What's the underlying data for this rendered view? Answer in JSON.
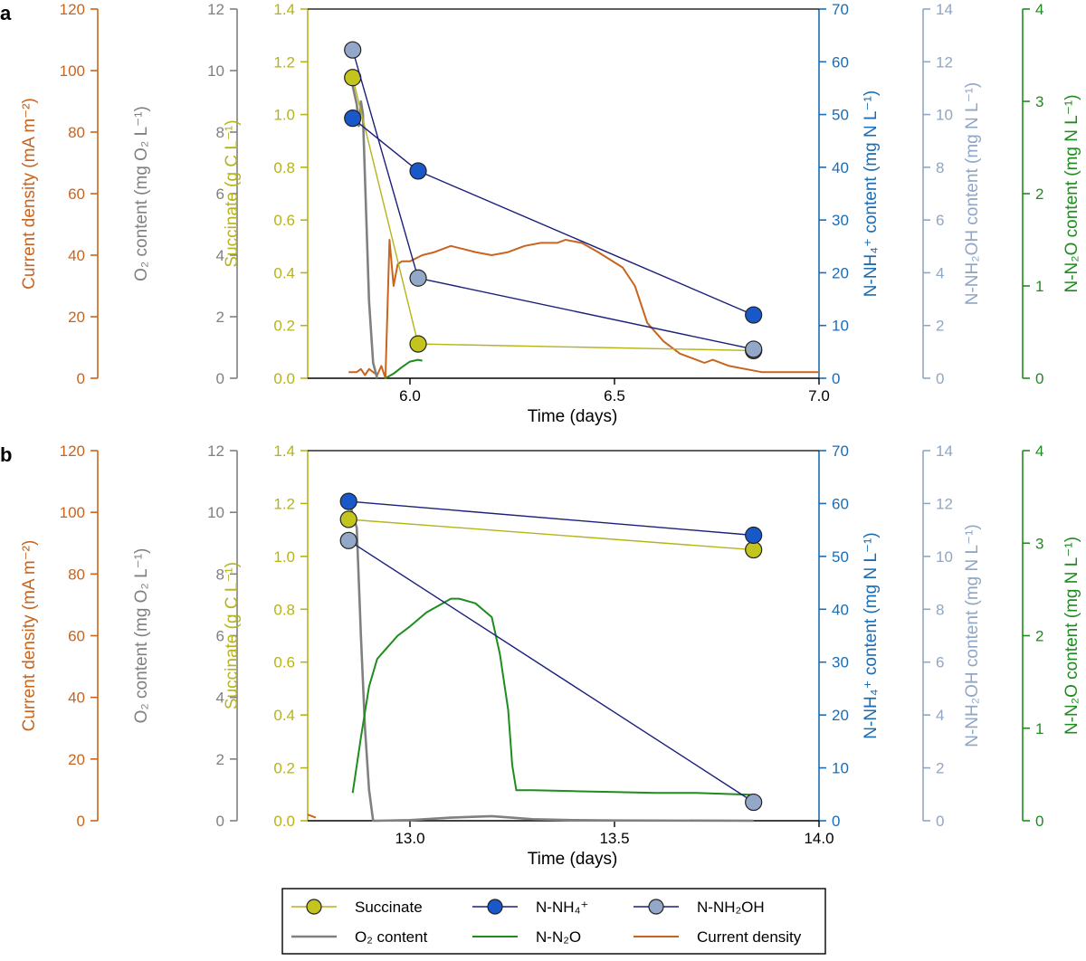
{
  "panels": [
    {
      "label": "a",
      "xlabel": "Time (days)",
      "xlim": [
        5.75,
        7.0
      ],
      "xticks": [
        6.0,
        6.5,
        7.0
      ],
      "xtick_labels": [
        "6.0",
        "6.5",
        "7.0"
      ],
      "axes": {
        "current_density": {
          "label": "Current density (mA m⁻²)",
          "ticks": [
            "0",
            "20",
            "40",
            "60",
            "80",
            "100",
            "120"
          ],
          "max": 120
        },
        "o2": {
          "label": "O₂ content (mg O₂ L⁻¹)",
          "ticks": [
            "0",
            "2",
            "4",
            "6",
            "8",
            "10",
            "12"
          ],
          "max": 12
        },
        "succinate": {
          "label": "Succinate (g C L⁻¹)",
          "ticks": [
            "0.0",
            "0.2",
            "0.4",
            "0.6",
            "0.8",
            "1.0",
            "1.2",
            "1.4"
          ],
          "max": 1.4
        },
        "nh4": {
          "label": "N-NH₄⁺ content (mg N L⁻¹)",
          "ticks": [
            "0",
            "10",
            "20",
            "30",
            "40",
            "50",
            "60",
            "70"
          ],
          "max": 70
        },
        "nh2oh": {
          "label": "N-NH₂OH content (mg N L⁻¹)",
          "ticks": [
            "0",
            "2",
            "4",
            "6",
            "8",
            "10",
            "12",
            "14"
          ],
          "max": 14
        },
        "n2o": {
          "label": "N-N₂O content (mg N L⁻¹)",
          "ticks": [
            "0",
            "1",
            "2",
            "3",
            "4"
          ],
          "max": 4
        }
      }
    },
    {
      "label": "b",
      "xlabel": "Time (days)",
      "xlim": [
        12.75,
        14.0
      ],
      "xticks": [
        13.0,
        13.5,
        14.0
      ],
      "xtick_labels": [
        "13.0",
        "13.5",
        "14.0"
      ],
      "axes": {
        "current_density": {
          "label": "Current density (mA m⁻²)",
          "ticks": [
            "0",
            "20",
            "40",
            "60",
            "80",
            "100",
            "120"
          ],
          "max": 120
        },
        "o2": {
          "label": "O₂ content (mg O₂ L⁻¹)",
          "ticks": [
            "0",
            "2",
            "4",
            "6",
            "8",
            "10",
            "12"
          ],
          "max": 12
        },
        "succinate": {
          "label": "Succinate (g C L⁻¹)",
          "ticks": [
            "0.0",
            "0.2",
            "0.4",
            "0.6",
            "0.8",
            "1.0",
            "1.2",
            "1.4"
          ],
          "max": 1.4
        },
        "nh4": {
          "label": "N-NH₄⁺ content (mg N L⁻¹)",
          "ticks": [
            "0",
            "10",
            "20",
            "30",
            "40",
            "50",
            "60",
            "70"
          ],
          "max": 70
        },
        "nh2oh": {
          "label": "N-NH₂OH content (mg N L⁻¹)",
          "ticks": [
            "0",
            "2",
            "4",
            "6",
            "8",
            "10",
            "12",
            "14"
          ],
          "max": 14
        },
        "n2o": {
          "label": "N-N₂O content (mg N L⁻¹)",
          "ticks": [
            "0",
            "1",
            "2",
            "3",
            "4"
          ],
          "max": 4
        }
      }
    }
  ],
  "legend": {
    "items": [
      {
        "key": "succinate",
        "label": "Succinate",
        "kind": "marker"
      },
      {
        "key": "nh4",
        "label": "N-NH₄⁺",
        "kind": "marker"
      },
      {
        "key": "nh2oh",
        "label": "N-NH₂OH",
        "kind": "marker"
      },
      {
        "key": "o2",
        "label": "O₂ content",
        "kind": "line"
      },
      {
        "key": "n2o",
        "label": "N-N₂O",
        "kind": "line"
      },
      {
        "key": "current_density",
        "label": "Current density",
        "kind": "line"
      }
    ]
  },
  "colors": {
    "current_density": "#c9641e",
    "o2": "#808080",
    "succinate": "#b5b41a",
    "succinate_marker": "#c4c41e",
    "nh4": "#1a6db5",
    "nh4_line": "#1b1f7a",
    "nh4_marker": "#1858c8",
    "nh2oh": "#8fa6c4",
    "nh2oh_line": "#1b1f7a",
    "nh2oh_marker": "#93a8c8",
    "n2o": "#1e8c1e"
  },
  "chart_data": [
    {
      "type": "line",
      "panel": "a",
      "xlabel": "Time (days)",
      "xlim": [
        5.75,
        7.0
      ],
      "series": [
        {
          "name": "Succinate",
          "axis": "succinate",
          "x": [
            5.86,
            6.02,
            6.84
          ],
          "y": [
            1.14,
            0.13,
            0.105
          ]
        },
        {
          "name": "N-NH₄⁺",
          "axis": "nh4",
          "x": [
            5.86,
            6.02,
            6.84
          ],
          "y": [
            49.3,
            39.3,
            12.0
          ]
        },
        {
          "name": "N-NH₂OH",
          "axis": "nh2oh",
          "x": [
            5.86,
            6.02,
            6.84
          ],
          "y": [
            12.45,
            3.8,
            1.1
          ]
        },
        {
          "name": "O₂ content",
          "axis": "o2",
          "x": [
            5.86,
            5.87,
            5.875,
            5.88,
            5.885,
            5.89,
            5.9,
            5.91,
            5.92
          ],
          "y": [
            9.5,
            8.9,
            8.2,
            9.0,
            8.6,
            6.5,
            2.5,
            0.5,
            0.0
          ]
        },
        {
          "name": "N-N₂O",
          "axis": "n2o",
          "x": [
            5.94,
            5.96,
            5.98,
            6.0,
            6.02,
            6.03
          ],
          "y": [
            0.0,
            0.05,
            0.12,
            0.18,
            0.2,
            0.19
          ]
        },
        {
          "name": "Current density",
          "axis": "current_density",
          "x": [
            5.85,
            5.87,
            5.88,
            5.89,
            5.9,
            5.91,
            5.92,
            5.93,
            5.94,
            5.95,
            5.96,
            5.97,
            5.98,
            6.0,
            6.03,
            6.06,
            6.08,
            6.1,
            6.13,
            6.16,
            6.2,
            6.24,
            6.28,
            6.32,
            6.36,
            6.38,
            6.42,
            6.46,
            6.52,
            6.55,
            6.58,
            6.62,
            6.66,
            6.7,
            6.72,
            6.74,
            6.78,
            6.82,
            6.86,
            6.9,
            6.95,
            7.0
          ],
          "y": [
            2,
            2,
            3,
            1,
            3,
            2,
            1,
            4,
            0,
            45,
            30,
            37,
            38,
            38,
            40,
            41,
            42,
            43,
            42,
            41,
            40,
            41,
            43,
            44,
            44,
            45,
            44,
            41,
            36,
            30,
            18,
            12,
            8,
            6,
            5,
            6,
            4,
            3,
            2,
            2,
            2,
            2
          ]
        }
      ]
    },
    {
      "type": "line",
      "panel": "b",
      "xlabel": "Time (days)",
      "xlim": [
        12.75,
        14.0
      ],
      "series": [
        {
          "name": "Succinate",
          "axis": "succinate",
          "x": [
            12.85,
            13.84
          ],
          "y": [
            1.14,
            1.025
          ]
        },
        {
          "name": "N-NH₄⁺",
          "axis": "nh4",
          "x": [
            12.85,
            13.84
          ],
          "y": [
            60.4,
            54.0
          ]
        },
        {
          "name": "N-NH₂OH",
          "axis": "nh2oh",
          "x": [
            12.85,
            13.84
          ],
          "y": [
            10.6,
            0.7
          ]
        },
        {
          "name": "O₂ content",
          "axis": "o2",
          "x": [
            12.85,
            12.87,
            12.88,
            12.89,
            12.9,
            12.91,
            12.92,
            13.0,
            13.1,
            13.2,
            13.3,
            13.4,
            13.5,
            13.84
          ],
          "y": [
            10.4,
            9.5,
            6.0,
            3.0,
            1.0,
            0.0,
            0.0,
            0.02,
            0.1,
            0.15,
            0.05,
            0.02,
            0.01,
            0.0
          ]
        },
        {
          "name": "N-N₂O",
          "axis": "n2o",
          "x": [
            12.86,
            12.88,
            12.9,
            12.92,
            12.94,
            12.97,
            13.0,
            13.04,
            13.08,
            13.1,
            13.12,
            13.16,
            13.2,
            13.22,
            13.24,
            13.25,
            13.26,
            13.3,
            13.4,
            13.5,
            13.6,
            13.7,
            13.84
          ],
          "y": [
            0.3,
            0.9,
            1.45,
            1.75,
            1.85,
            2.0,
            2.1,
            2.25,
            2.35,
            2.4,
            2.4,
            2.35,
            2.2,
            1.8,
            1.2,
            0.6,
            0.33,
            0.33,
            0.32,
            0.31,
            0.3,
            0.3,
            0.28
          ]
        },
        {
          "name": "Current density",
          "axis": "current_density",
          "x": [
            12.75,
            12.77
          ],
          "y": [
            2,
            1
          ]
        }
      ]
    }
  ]
}
